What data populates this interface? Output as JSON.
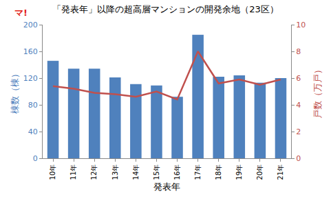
{
  "chart_data": {
    "type": "bar",
    "title": "「発表年」以降の超高層マンションの開発余地（23区）",
    "annotations": [
      "マ!"
    ],
    "x_label": "発表年",
    "y_label": "棟数（棟）",
    "y2_label": "戸数（万戸）",
    "categories": [
      "10年",
      "11年",
      "12年",
      "13年",
      "14年",
      "15年",
      "16年",
      "17年",
      "18年",
      "19年",
      "20年",
      "21年"
    ],
    "series": [
      {
        "type": "bar",
        "color": "#4f81bd",
        "values": [
          146,
          134,
          134,
          121,
          111,
          109,
          92,
          185,
          122,
          124,
          113,
          120
        ]
      },
      {
        "type": "line",
        "axis": "y2",
        "color": "#c0504d",
        "values": [
          5.4,
          5.2,
          4.9,
          4.8,
          4.6,
          5.0,
          4.4,
          8.0,
          5.6,
          5.9,
          5.5,
          5.9
        ]
      }
    ],
    "ylim": [
      0,
      200
    ],
    "yticks": [
      0,
      40,
      80,
      120,
      160,
      200
    ],
    "y2lim": [
      0,
      10
    ],
    "y2ticks": [
      0,
      2,
      4,
      6,
      8,
      10
    ],
    "grid": false
  }
}
